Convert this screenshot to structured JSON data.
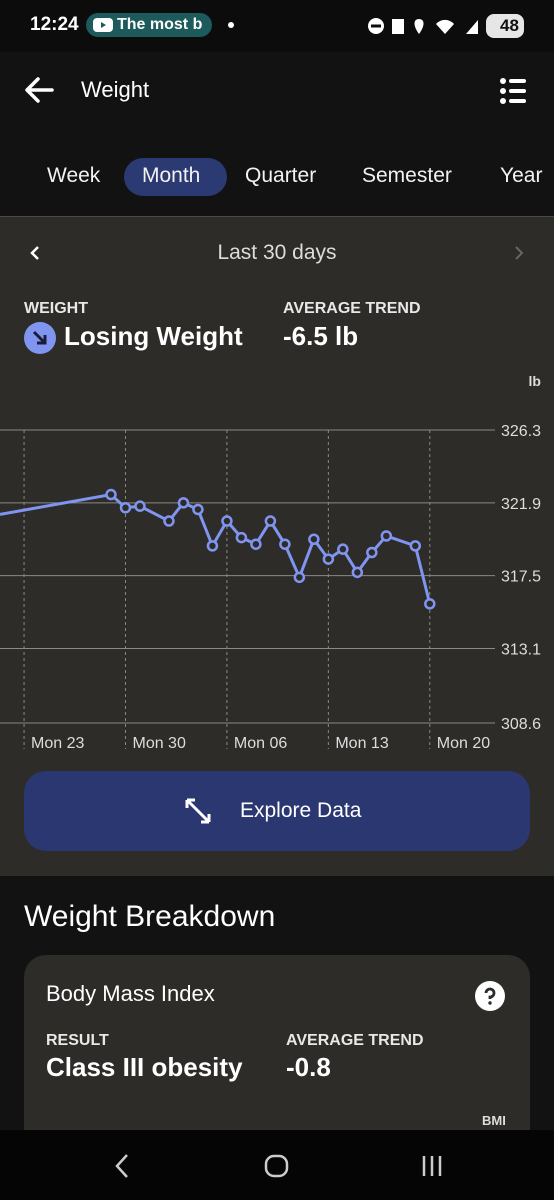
{
  "status": {
    "time": "12:24",
    "notification": "The most b",
    "battery": "48"
  },
  "header": {
    "title": "Weight"
  },
  "tabs": [
    "Week",
    "Month",
    "Quarter",
    "Semester",
    "Year"
  ],
  "range": {
    "label": "Last 30 days"
  },
  "summary": {
    "weight_label": "WEIGHT",
    "weight_value": "Losing Weight",
    "trend_label": "AVERAGE TREND",
    "trend_value": "-6.5 lb"
  },
  "chart_data": {
    "type": "line",
    "ylabel": "lb",
    "ylim": [
      308.6,
      326.3
    ],
    "yticks": [
      326.3,
      321.9,
      317.5,
      313.1,
      308.6
    ],
    "xlim": [
      -1.66,
      32.5
    ],
    "xticks": [
      {
        "value": 0,
        "label": "Mon 23"
      },
      {
        "value": 7,
        "label": "Mon 30"
      },
      {
        "value": 14,
        "label": "Mon 06"
      },
      {
        "value": 21,
        "label": "Mon 13"
      },
      {
        "value": 28,
        "label": "Mon 20"
      }
    ],
    "grid": true,
    "x": [
      -1.66,
      6,
      7,
      8,
      10,
      11,
      12,
      13,
      14,
      15,
      16,
      17,
      18,
      19,
      20,
      21,
      22,
      23,
      24,
      25,
      27,
      28
    ],
    "series": [
      {
        "color": "#8095f0",
        "values": [
          321.2,
          322.4,
          321.6,
          321.7,
          320.8,
          321.9,
          321.5,
          319.3,
          320.8,
          319.8,
          319.4,
          320.8,
          319.4,
          317.4,
          319.7,
          318.5,
          319.1,
          317.7,
          318.9,
          319.9,
          319.3,
          315.8
        ]
      }
    ]
  },
  "button": {
    "label": "Explore Data"
  },
  "breakdown": {
    "title": "Weight Breakdown",
    "card_title": "Body Mass Index",
    "result_label": "RESULT",
    "result_value": "Class III obesity",
    "trend_label": "AVERAGE TREND",
    "trend_value": "-0.8",
    "axis_label": "BMI"
  }
}
